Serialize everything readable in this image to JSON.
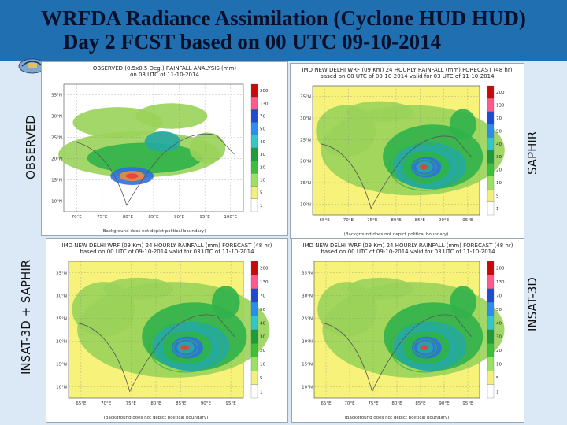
{
  "slide": {
    "title_line1": "WRFDA Radiance Assimilation (Cyclone HUD HUD)",
    "title_line2": "Day 2 FCST based on 00 UTC 09-10-2014"
  },
  "labels": {
    "observed": "OBSERVED",
    "saphir": "SAPHIR",
    "insat_saphir": "INSAT-3D + SAPHIR",
    "insat": "INSAT-3D"
  },
  "panels": {
    "observed": {
      "title": "OBSERVED (0.5x0.5 Deg.) RAINFALL ANALYSIS (mm)",
      "subtitle": "on 03 UTC of 11-10-2014",
      "footer": "(Background does not depict political boundary)",
      "lat_ticks": [
        "35°N",
        "30°N",
        "25°N",
        "20°N",
        "15°N",
        "10°N"
      ],
      "lon_ticks": [
        "70°E",
        "75°E",
        "80°E",
        "85°E",
        "90°E",
        "95°E",
        "100°E"
      ],
      "colorbar": [
        "200",
        "130",
        "70",
        "50",
        "40",
        "30",
        "20",
        "10",
        "5",
        "1"
      ]
    },
    "saphir": {
      "title": "IMD NEW DELHI WRF (09 Km) 24 HOURLY RAINFALL (mm) FORECAST (48 hr)",
      "subtitle": "based on 00 UTC of 09-10-2014 valid for 03 UTC of 11-10-2014",
      "footer": "(Background does not depict political boundary)",
      "lat_ticks": [
        "35°N",
        "30°N",
        "25°N",
        "20°N",
        "15°N",
        "10°N"
      ],
      "lon_ticks": [
        "65°E",
        "70°E",
        "75°E",
        "80°E",
        "85°E",
        "90°E",
        "95°E"
      ],
      "colorbar": [
        "200",
        "130",
        "70",
        "50",
        "40",
        "30",
        "20",
        "10",
        "5",
        "1"
      ]
    },
    "insat_saphir": {
      "title": "IMD NEW DELHI WRF (09 Km) 24 HOURLY RAINFALL (mm) FORECAST (48 hr)",
      "subtitle": "based on 00 UTC of 09-10-2014 valid for 03 UTC of 11-10-2014",
      "footer": "(Background does not depict political boundary)",
      "lat_ticks": [
        "35°N",
        "30°N",
        "25°N",
        "20°N",
        "15°N",
        "10°N"
      ],
      "lon_ticks": [
        "65°E",
        "70°E",
        "75°E",
        "80°E",
        "85°E",
        "90°E",
        "95°E"
      ],
      "colorbar": [
        "200",
        "130",
        "70",
        "50",
        "40",
        "30",
        "20",
        "10",
        "5",
        "1"
      ]
    },
    "insat": {
      "title": "IMD NEW DELHI WRF (09 Km) 24 HOURLY RAINFALL (mm) FORECAST (48 hr)",
      "subtitle": "based on 00 UTC of 09-10-2014 valid for 03 UTC of 11-10-2014",
      "footer": "(Background does not depict political boundary)",
      "lat_ticks": [
        "35°N",
        "30°N",
        "25°N",
        "20°N",
        "15°N",
        "10°N"
      ],
      "lon_ticks": [
        "65°E",
        "70°E",
        "75°E",
        "80°E",
        "85°E",
        "90°E",
        "95°E"
      ],
      "colorbar": [
        "200",
        "130",
        "70",
        "50",
        "40",
        "30",
        "20",
        "10",
        "5",
        "1"
      ]
    }
  },
  "colors": {
    "title_bar": "#1f6fb1",
    "slide_bg": "#dbe9f6",
    "land_low": "#f6f27a",
    "rain_green": "#2fb34a",
    "rain_light_green": "#9ad35a",
    "rain_teal": "#25a9a4",
    "rain_blue": "#2d6fe0",
    "rain_red": "#e2433a",
    "rain_orange": "#f08a3a"
  }
}
